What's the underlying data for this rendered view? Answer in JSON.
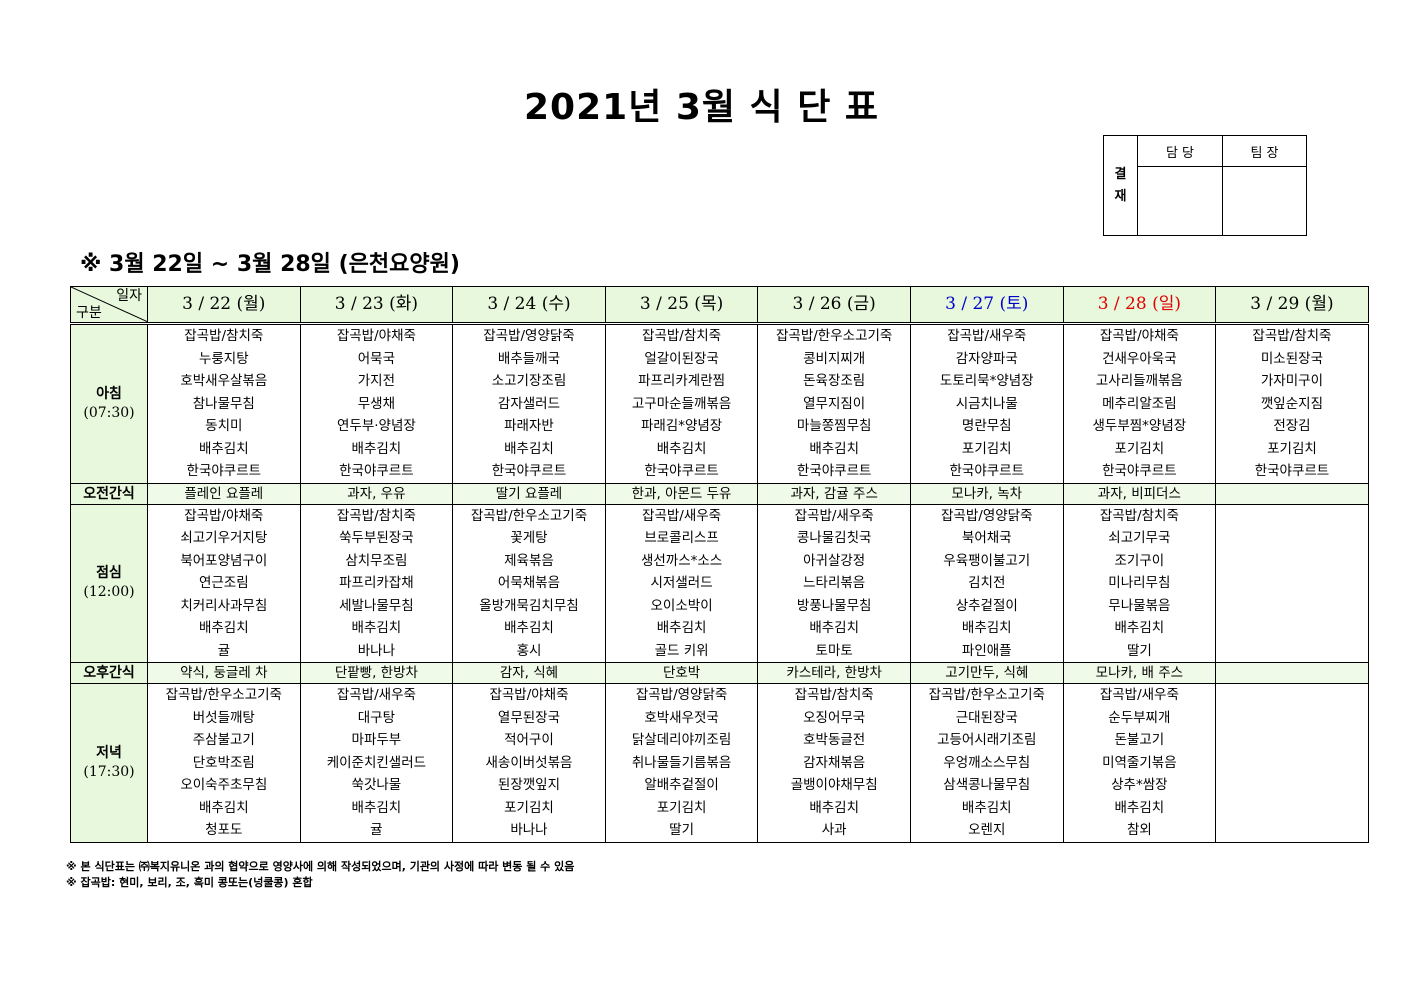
{
  "title": "2021년 3월 식 단 표",
  "approval": {
    "label": "결\n재",
    "cols": [
      "담 당",
      "팀 장"
    ]
  },
  "subtitle": "※ 3월 22일 ~ 3월 28일 (은천요양원)",
  "colors": {
    "header_bg": "#e8f8dc",
    "saturday": "#0000cc",
    "sunday": "#e00000"
  },
  "corner": {
    "top": "일자",
    "bottom": "구분"
  },
  "days": [
    {
      "label": "3 / 22 (월)",
      "color": "#000000"
    },
    {
      "label": "3 / 23 (화)",
      "color": "#000000"
    },
    {
      "label": "3 / 24 (수)",
      "color": "#000000"
    },
    {
      "label": "3 / 25 (목)",
      "color": "#000000"
    },
    {
      "label": "3 / 26 (금)",
      "color": "#000000"
    },
    {
      "label": "3 / 27 (토)",
      "color": "#0000cc"
    },
    {
      "label": "3 / 28 (일)",
      "color": "#e00000"
    },
    {
      "label": "3 / 29 (월)",
      "color": "#000000"
    }
  ],
  "rows": [
    {
      "name": "아침",
      "time": "(07:30)",
      "type": "meal",
      "cells": [
        [
          "잡곡밥/참치죽",
          "누룽지탕",
          "호박새우살볶음",
          "참나물무침",
          "동치미",
          "배추김치",
          "한국야쿠르트"
        ],
        [
          "잡곡밥/야채죽",
          "어묵국",
          "가지전",
          "무생채",
          "연두부·양념장",
          "배추김치",
          "한국야쿠르트"
        ],
        [
          "잡곡밥/영양닭죽",
          "배추들깨국",
          "소고기장조림",
          "감자샐러드",
          "파래자반",
          "배추김치",
          "한국야쿠르트"
        ],
        [
          "잡곡밥/참치죽",
          "얼갈이된장국",
          "파프리카계란찜",
          "고구마순들깨볶음",
          "파래김*양념장",
          "배추김치",
          "한국야쿠르트"
        ],
        [
          "잡곡밥/한우소고기죽",
          "콩비지찌개",
          "돈육장조림",
          "열무지짐이",
          "마늘쫑찜무침",
          "배추김치",
          "한국야쿠르트"
        ],
        [
          "잡곡밥/새우죽",
          "감자양파국",
          "도토리묵*양념장",
          "시금치나물",
          "명란무침",
          "포기김치",
          "한국야쿠르트"
        ],
        [
          "잡곡밥/야채죽",
          "건새우아욱국",
          "고사리들깨볶음",
          "메추리알조림",
          "생두부찜*양념장",
          "포기김치",
          "한국야쿠르트"
        ],
        [
          "잡곡밥/참치죽",
          "미소된장국",
          "가자미구이",
          "깻잎순지짐",
          "전장김",
          "포기김치",
          "한국야쿠르트"
        ]
      ]
    },
    {
      "name": "오전간식",
      "type": "snack",
      "cells": [
        "플레인 요플레",
        "과자, 우유",
        "딸기 요플레",
        "한과, 아몬드 두유",
        "과자, 감귤 주스",
        "모나카, 녹차",
        "과자, 비피더스",
        ""
      ]
    },
    {
      "name": "점심",
      "time": "(12:00)",
      "type": "meal",
      "cells": [
        [
          "잡곡밥/야채죽",
          "쇠고기우거지탕",
          "북어포양념구이",
          "연근조림",
          "치커리사과무침",
          "배추김치",
          "귤"
        ],
        [
          "잡곡밥/참치죽",
          "쑥두부된장국",
          "삼치무조림",
          "파프리카잡채",
          "세발나물무침",
          "배추김치",
          "바나나"
        ],
        [
          "잡곡밥/한우소고기죽",
          "꽃게탕",
          "제육볶음",
          "어묵채볶음",
          "올방개묵김치무침",
          "배추김치",
          "홍시"
        ],
        [
          "잡곡밥/새우죽",
          "브로콜리스프",
          "생선까스*소스",
          "시저샐러드",
          "오이소박이",
          "배추김치",
          "골드 키위"
        ],
        [
          "잡곡밥/새우죽",
          "콩나물김칫국",
          "아귀살강정",
          "느타리볶음",
          "방풍나물무침",
          "배추김치",
          "토마토"
        ],
        [
          "잡곡밥/영양닭죽",
          "북어채국",
          "우육팽이불고기",
          "김치전",
          "상추겉절이",
          "배추김치",
          "파인애플"
        ],
        [
          "잡곡밥/참치죽",
          "쇠고기무국",
          "조기구이",
          "미나리무침",
          "무나물볶음",
          "배추김치",
          "딸기"
        ],
        []
      ]
    },
    {
      "name": "오후간식",
      "type": "snack",
      "cells": [
        "약식, 둥글레 차",
        "단팥빵, 한방차",
        "감자, 식혜",
        "단호박",
        "카스테라, 한방차",
        "고기만두, 식혜",
        "모나카, 배 주스",
        ""
      ]
    },
    {
      "name": "저녁",
      "time": "(17:30)",
      "type": "meal",
      "cells": [
        [
          "잡곡밥/한우소고기죽",
          "버섯들깨탕",
          "주삼불고기",
          "단호박조림",
          "오이숙주초무침",
          "배추김치",
          "청포도"
        ],
        [
          "잡곡밥/새우죽",
          "대구탕",
          "마파두부",
          "케이준치킨샐러드",
          "쑥갓나물",
          "배추김치",
          "귤"
        ],
        [
          "잡곡밥/야채죽",
          "열무된장국",
          "적어구이",
          "새송이버섯볶음",
          "된장깻잎지",
          "포기김치",
          "바나나"
        ],
        [
          "잡곡밥/영양닭죽",
          "호박새우젓국",
          "닭살데리야끼조림",
          "취나물들기름볶음",
          "알배추겉절이",
          "포기김치",
          "딸기"
        ],
        [
          "잡곡밥/참치죽",
          "오징어무국",
          "호박동글전",
          "감자채볶음",
          "골뱅이야채무침",
          "배추김치",
          "사과"
        ],
        [
          "잡곡밥/한우소고기죽",
          "근대된장국",
          "고등어시래기조림",
          "우엉깨소스무침",
          "삼색콩나물무침",
          "배추김치",
          "오렌지"
        ],
        [
          "잡곡밥/새우죽",
          "순두부찌개",
          "돈불고기",
          "미역줄기볶음",
          "상추*쌈장",
          "배추김치",
          "참외"
        ],
        []
      ]
    }
  ],
  "footnotes": [
    "※ 본 식단표는 ㈜복지유니온 과의 협약으로 영양사에 의해 작성되었으며, 기관의 사정에 따라 변동 될 수 있음",
    "※ 잡곡밥: 현미, 보리, 조, 흑미 콩또는(넝쿨콩) 혼합"
  ]
}
